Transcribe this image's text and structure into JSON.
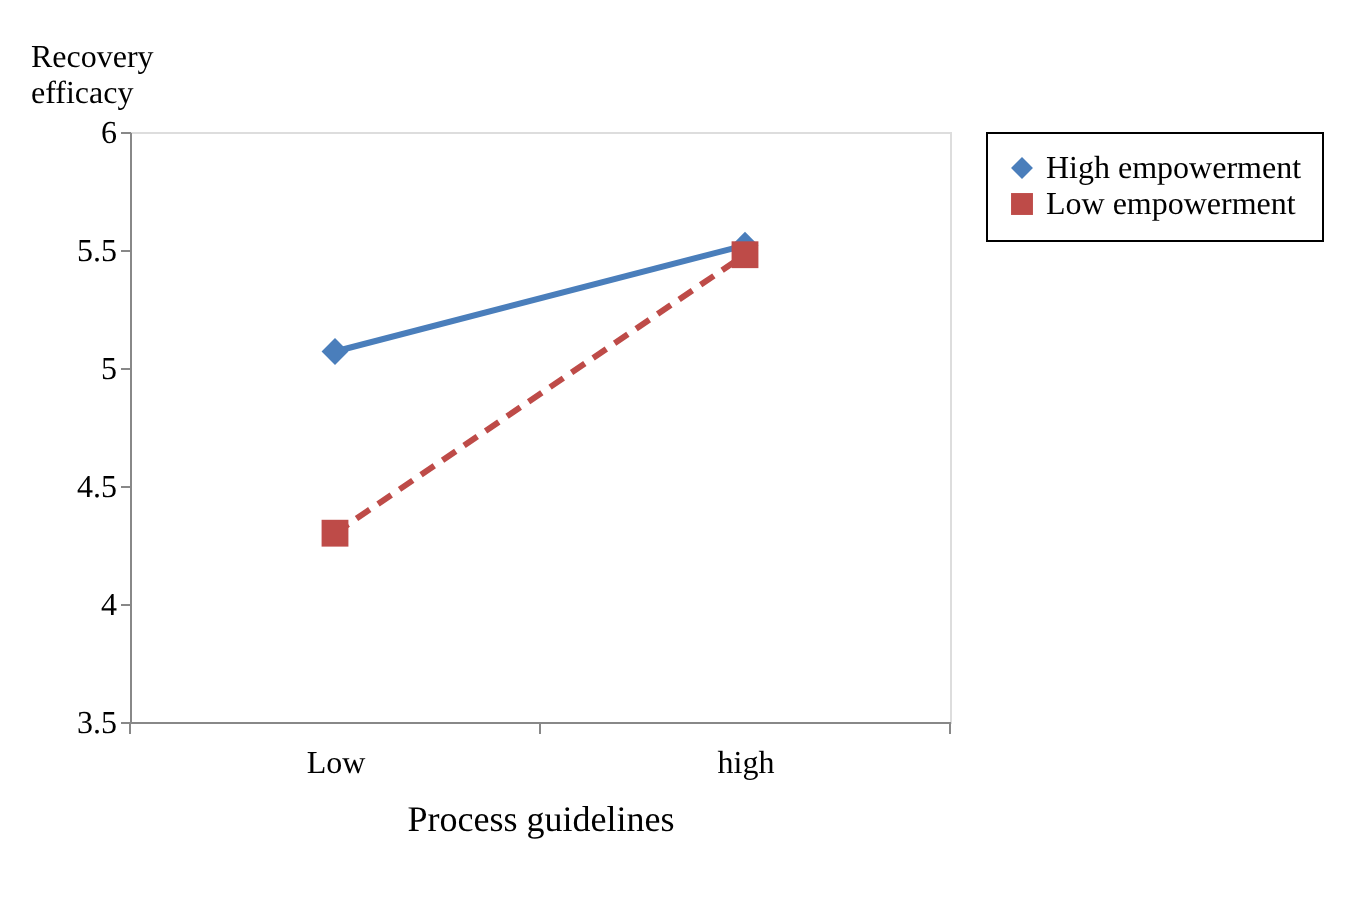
{
  "chart_data": {
    "type": "line",
    "xlabel": "Process guidelines",
    "ylabel": "Recovery efficacy",
    "categories": [
      "Low",
      "high"
    ],
    "series": [
      {
        "name": "High empowerment",
        "color": "#4a7ebb",
        "values": [
          5.07,
          5.52
        ],
        "marker": "diamond",
        "line_style": "solid"
      },
      {
        "name": "Low empowerment",
        "color": "#be4b48",
        "values": [
          4.3,
          5.48
        ],
        "marker": "square",
        "line_style": "dashed"
      }
    ],
    "ylim": [
      3.5,
      6
    ],
    "yticks": [
      3.5,
      {
        "value": 4,
        "label": "4"
      },
      4.5,
      {
        "value": 5,
        "label": "5"
      },
      5.5,
      {
        "value": 6,
        "label": "6"
      }
    ],
    "grid": false,
    "legend": "right"
  }
}
